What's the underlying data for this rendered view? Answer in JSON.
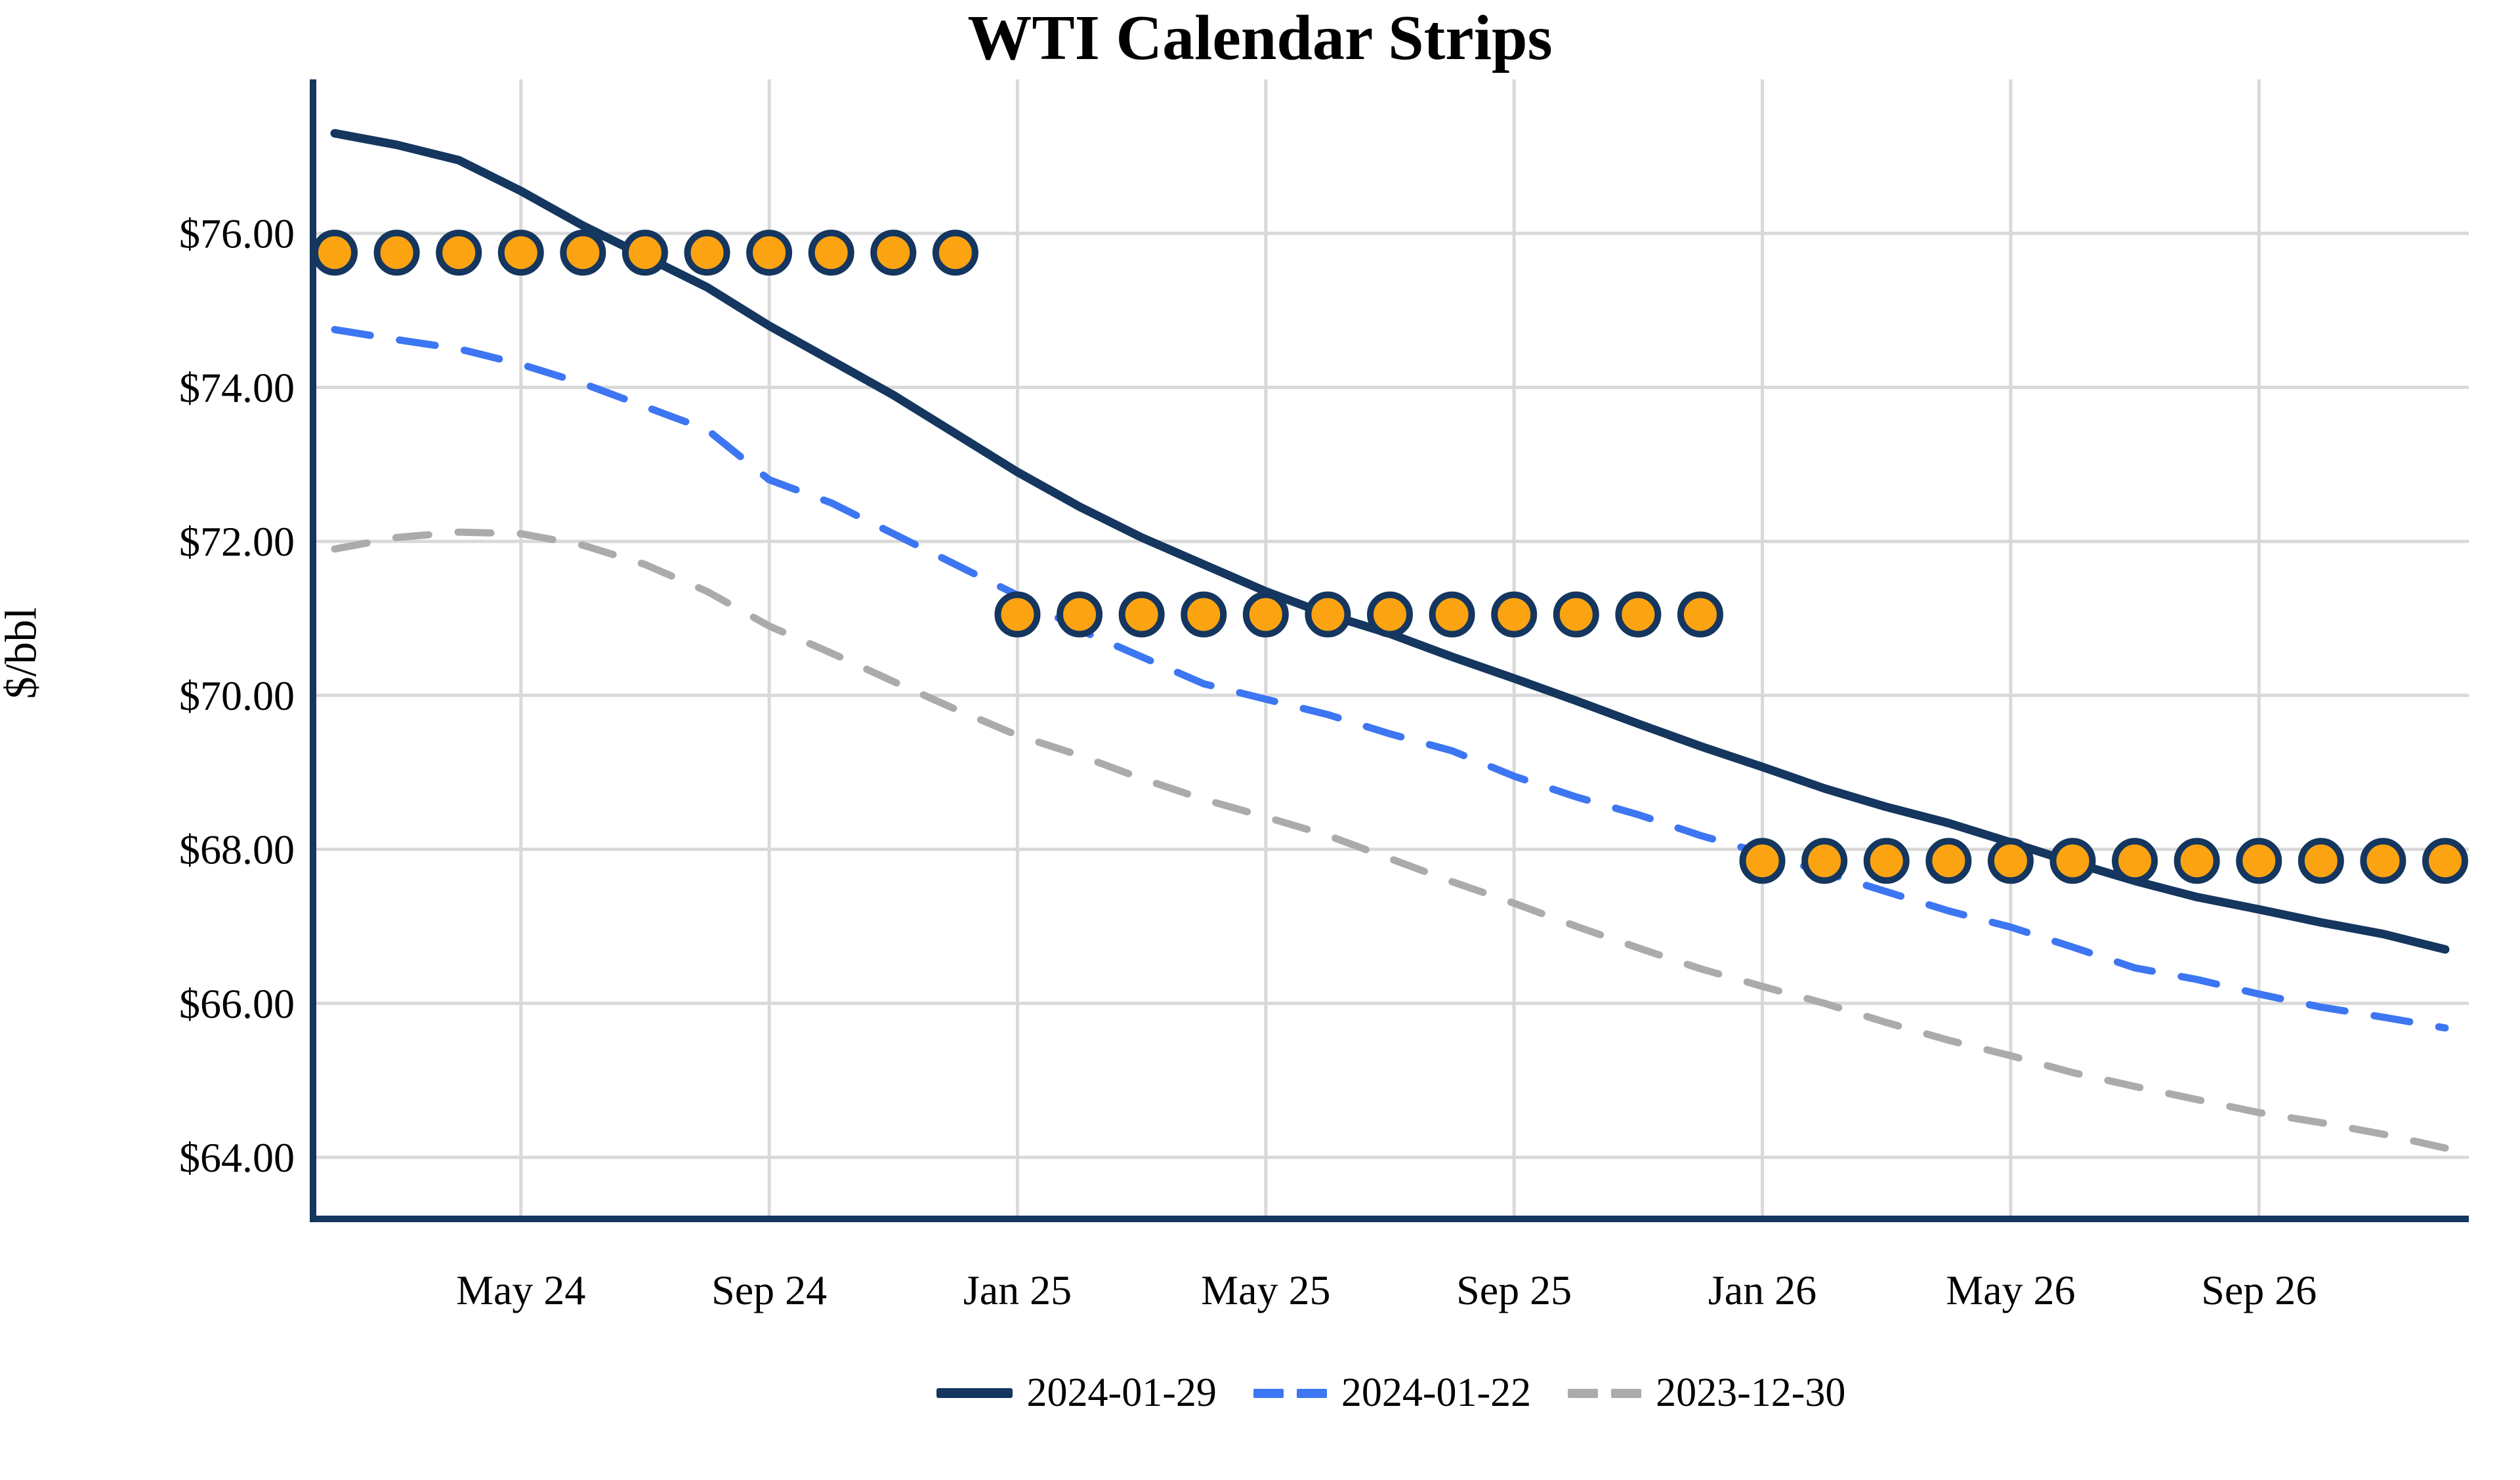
{
  "title": "WTI Calendar Strips",
  "y_axis_title": "$/bbl",
  "chart_data": {
    "type": "line",
    "title": "WTI Calendar Strips",
    "ylabel": "$/bbl",
    "xlabel": "",
    "ylim": [
      63.2,
      78.0
    ],
    "grid": true,
    "legend_position": "bottom",
    "x": [
      "Feb 24",
      "Mar 24",
      "Apr 24",
      "May 24",
      "Jun 24",
      "Jul 24",
      "Aug 24",
      "Sep 24",
      "Oct 24",
      "Nov 24",
      "Dec 24",
      "Jan 25",
      "Feb 25",
      "Mar 25",
      "Apr 25",
      "May 25",
      "Jun 25",
      "Jul 25",
      "Aug 25",
      "Sep 25",
      "Oct 25",
      "Nov 25",
      "Dec 25",
      "Jan 26",
      "Feb 26",
      "Mar 26",
      "Apr 26",
      "May 26",
      "Jun 26",
      "Jul 26",
      "Aug 26",
      "Sep 26",
      "Oct 26",
      "Nov 26",
      "Dec 26"
    ],
    "x_tick_indices": [
      3,
      7,
      11,
      15,
      19,
      23,
      27,
      31
    ],
    "x_tick_labels": [
      "May 24",
      "Sep 24",
      "Jan 25",
      "May 25",
      "Sep 25",
      "Jan 26",
      "May 26",
      "Sep 26"
    ],
    "y_ticks": [
      {
        "value": 76,
        "label": "$76.00"
      },
      {
        "value": 74,
        "label": "$74.00"
      },
      {
        "value": 72,
        "label": "$72.00"
      },
      {
        "value": 70,
        "label": "$70.00"
      },
      {
        "value": 68,
        "label": "$68.00"
      },
      {
        "value": 66,
        "label": "$66.00"
      },
      {
        "value": 64,
        "label": "$64.00"
      }
    ],
    "series": [
      {
        "name": "2024-01-29",
        "color": "#14365F",
        "dash": "solid",
        "width": 13,
        "values": [
          77.3,
          77.15,
          76.95,
          76.55,
          76.1,
          75.7,
          75.3,
          74.8,
          74.35,
          73.9,
          73.4,
          72.9,
          72.45,
          72.05,
          71.7,
          71.35,
          71.05,
          70.8,
          70.5,
          70.22,
          69.93,
          69.63,
          69.34,
          69.07,
          68.79,
          68.55,
          68.34,
          68.09,
          67.83,
          67.59,
          67.38,
          67.22,
          67.05,
          66.9,
          66.7
        ]
      },
      {
        "name": "2024-01-22",
        "color": "#3D76F2",
        "dash": [
          55,
          45
        ],
        "width": 11,
        "values": [
          74.75,
          74.62,
          74.5,
          74.3,
          74.05,
          73.75,
          73.45,
          72.8,
          72.5,
          72.1,
          71.7,
          71.3,
          70.85,
          70.5,
          70.15,
          69.95,
          69.75,
          69.5,
          69.28,
          68.95,
          68.68,
          68.45,
          68.18,
          67.95,
          67.7,
          67.45,
          67.2,
          66.99,
          66.73,
          66.46,
          66.31,
          66.12,
          65.95,
          65.82,
          65.68
        ]
      },
      {
        "name": "2023-12-30",
        "color": "#ABABAB",
        "dash": [
          50,
          45
        ],
        "width": 11,
        "values": [
          71.9,
          72.05,
          72.12,
          72.1,
          71.95,
          71.7,
          71.35,
          70.9,
          70.55,
          70.18,
          69.82,
          69.48,
          69.22,
          68.92,
          68.65,
          68.42,
          68.18,
          67.88,
          67.58,
          67.3,
          67.0,
          66.72,
          66.45,
          66.22,
          66.0,
          65.75,
          65.52,
          65.32,
          65.1,
          64.92,
          64.75,
          64.58,
          64.45,
          64.3,
          64.12
        ]
      }
    ],
    "calendar_strips": [
      {
        "value": 75.75,
        "from_index": 0,
        "to_index": 10
      },
      {
        "value": 71.05,
        "from_index": 11,
        "to_index": 22
      },
      {
        "value": 67.85,
        "from_index": 23,
        "to_index": 34
      }
    ],
    "marker_style": {
      "fill": "#FCA311",
      "stroke": "#14365F",
      "radius": 30,
      "stroke_width": 10
    },
    "style": {
      "grid_color": "#D9D9D9",
      "axis_color": "#14365F",
      "text_color": "#000000",
      "background": "#FFFFFF"
    }
  }
}
